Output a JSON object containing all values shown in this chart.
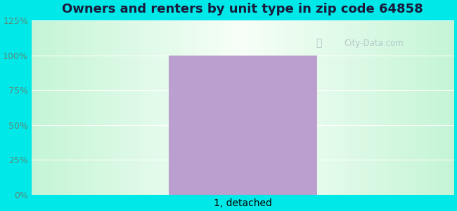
{
  "title": "Owners and renters by unit type in zip code 64858",
  "categories": [
    "1, detached"
  ],
  "values": [
    100
  ],
  "bar_color": "#bb9fcf",
  "ylim": [
    0,
    125
  ],
  "yticks": [
    0,
    25,
    50,
    75,
    100,
    125
  ],
  "ytick_labels": [
    "0%",
    "25%",
    "50%",
    "75%",
    "100%",
    "125%"
  ],
  "outer_bg_color": "#00e8e8",
  "title_fontsize": 13,
  "tick_fontsize": 9,
  "watermark_text": "City-Data.com",
  "grid_color": "#e0ece0",
  "tick_color": "#5a8a7a",
  "title_color": "#1a1a3a"
}
